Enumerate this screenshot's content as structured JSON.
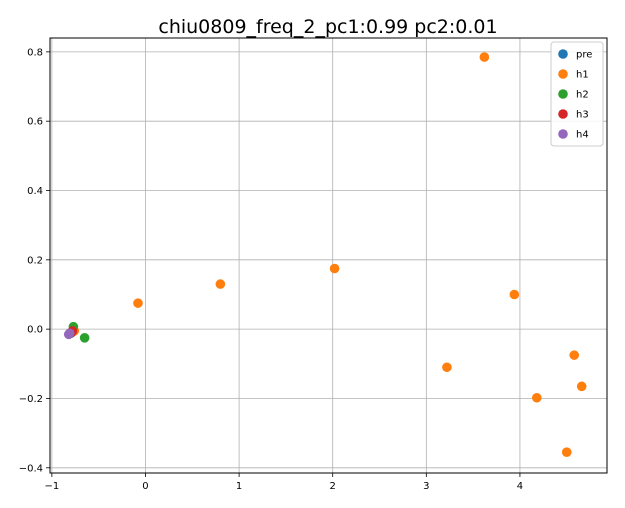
{
  "chart_data": {
    "type": "scatter",
    "title": "chiu0809_freq_2_pc1:0.99 pc2:0.01",
    "xlabel": "",
    "ylabel": "",
    "xlim": [
      -1.02,
      4.93
    ],
    "ylim": [
      -0.415,
      0.84
    ],
    "xticks": [
      -1,
      0,
      1,
      2,
      3,
      4
    ],
    "yticks": [
      -0.4,
      -0.2,
      0.0,
      0.2,
      0.4,
      0.6,
      0.8
    ],
    "xtick_labels": [
      "−1",
      "0",
      "1",
      "2",
      "3",
      "4"
    ],
    "ytick_labels": [
      "−0.4",
      "−0.2",
      "0.0",
      "0.2",
      "0.4",
      "0.6",
      "0.8"
    ],
    "grid": true,
    "legend_position": "top-right",
    "series": [
      {
        "name": "pre",
        "color": "#1f77b4",
        "points": []
      },
      {
        "name": "h1",
        "color": "#ff7f0e",
        "points": [
          {
            "x": 3.62,
            "y": 0.785
          },
          {
            "x": -0.08,
            "y": 0.075
          },
          {
            "x": 0.8,
            "y": 0.13
          },
          {
            "x": 2.02,
            "y": 0.175
          },
          {
            "x": 3.94,
            "y": 0.1
          },
          {
            "x": 3.22,
            "y": -0.11
          },
          {
            "x": 4.58,
            "y": -0.075
          },
          {
            "x": 4.66,
            "y": -0.165
          },
          {
            "x": 4.18,
            "y": -0.198
          },
          {
            "x": 4.5,
            "y": -0.355
          },
          {
            "x": -0.76,
            "y": -0.005
          }
        ]
      },
      {
        "name": "h2",
        "color": "#2ca02c",
        "points": [
          {
            "x": -0.77,
            "y": 0.007
          },
          {
            "x": -0.65,
            "y": -0.025
          },
          {
            "x": -0.8,
            "y": -0.012
          }
        ]
      },
      {
        "name": "h3",
        "color": "#d62728",
        "points": [
          {
            "x": -0.79,
            "y": -0.01
          },
          {
            "x": -0.78,
            "y": -0.005
          }
        ]
      },
      {
        "name": "h4",
        "color": "#9467bd",
        "points": [
          {
            "x": -0.82,
            "y": -0.015
          },
          {
            "x": -0.81,
            "y": -0.012
          }
        ]
      }
    ]
  }
}
